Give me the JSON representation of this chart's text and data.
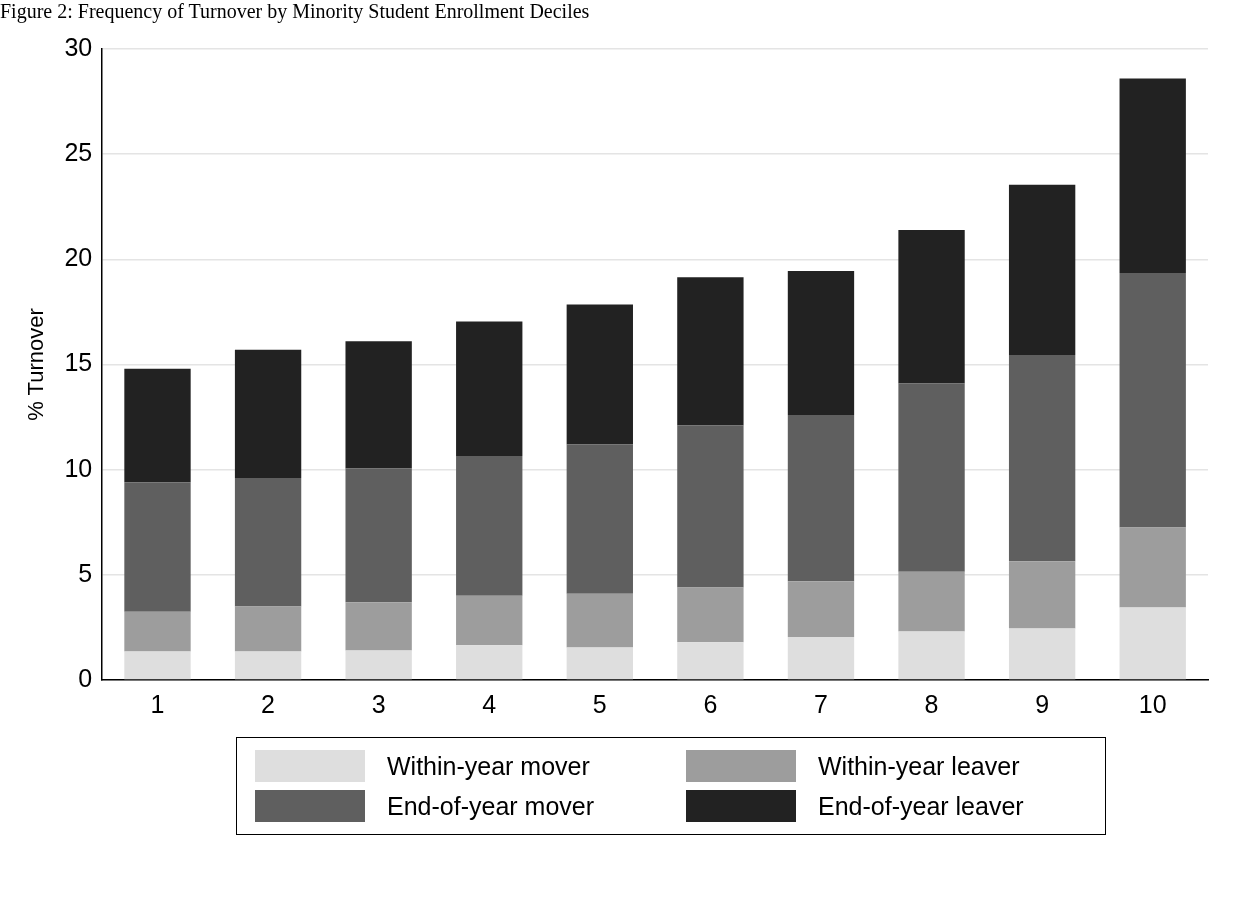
{
  "chart_data": {
    "type": "bar",
    "stacked": true,
    "title": "Figure 2: Frequency of Turnover by Minority Student Enrollment Deciles",
    "ylabel": "% Turnover",
    "categories": [
      "1",
      "2",
      "3",
      "4",
      "5",
      "6",
      "7",
      "8",
      "9",
      "10"
    ],
    "series": [
      {
        "name": "Within-year mover",
        "color": "#dedede",
        "values": [
          1.35,
          1.35,
          1.4,
          1.65,
          1.55,
          1.8,
          2.05,
          2.3,
          2.45,
          3.45
        ]
      },
      {
        "name": "Within-year leaver",
        "color": "#9d9d9d",
        "values": [
          1.9,
          2.15,
          2.3,
          2.35,
          2.55,
          2.6,
          2.65,
          2.85,
          3.2,
          3.8
        ]
      },
      {
        "name": "End-of-year mover",
        "color": "#5f5f5f",
        "values": [
          6.15,
          6.1,
          6.35,
          6.65,
          7.1,
          7.7,
          7.9,
          8.95,
          9.8,
          12.1
        ]
      },
      {
        "name": "End-of-year leaver",
        "color": "#222222",
        "values": [
          5.4,
          6.1,
          6.05,
          6.4,
          6.65,
          7.05,
          6.85,
          7.3,
          8.1,
          9.25
        ]
      }
    ],
    "ylim": [
      0,
      30
    ],
    "yticks": [
      0,
      5,
      10,
      15,
      20,
      25,
      30
    ],
    "grid": "y",
    "legend": "bottom"
  }
}
